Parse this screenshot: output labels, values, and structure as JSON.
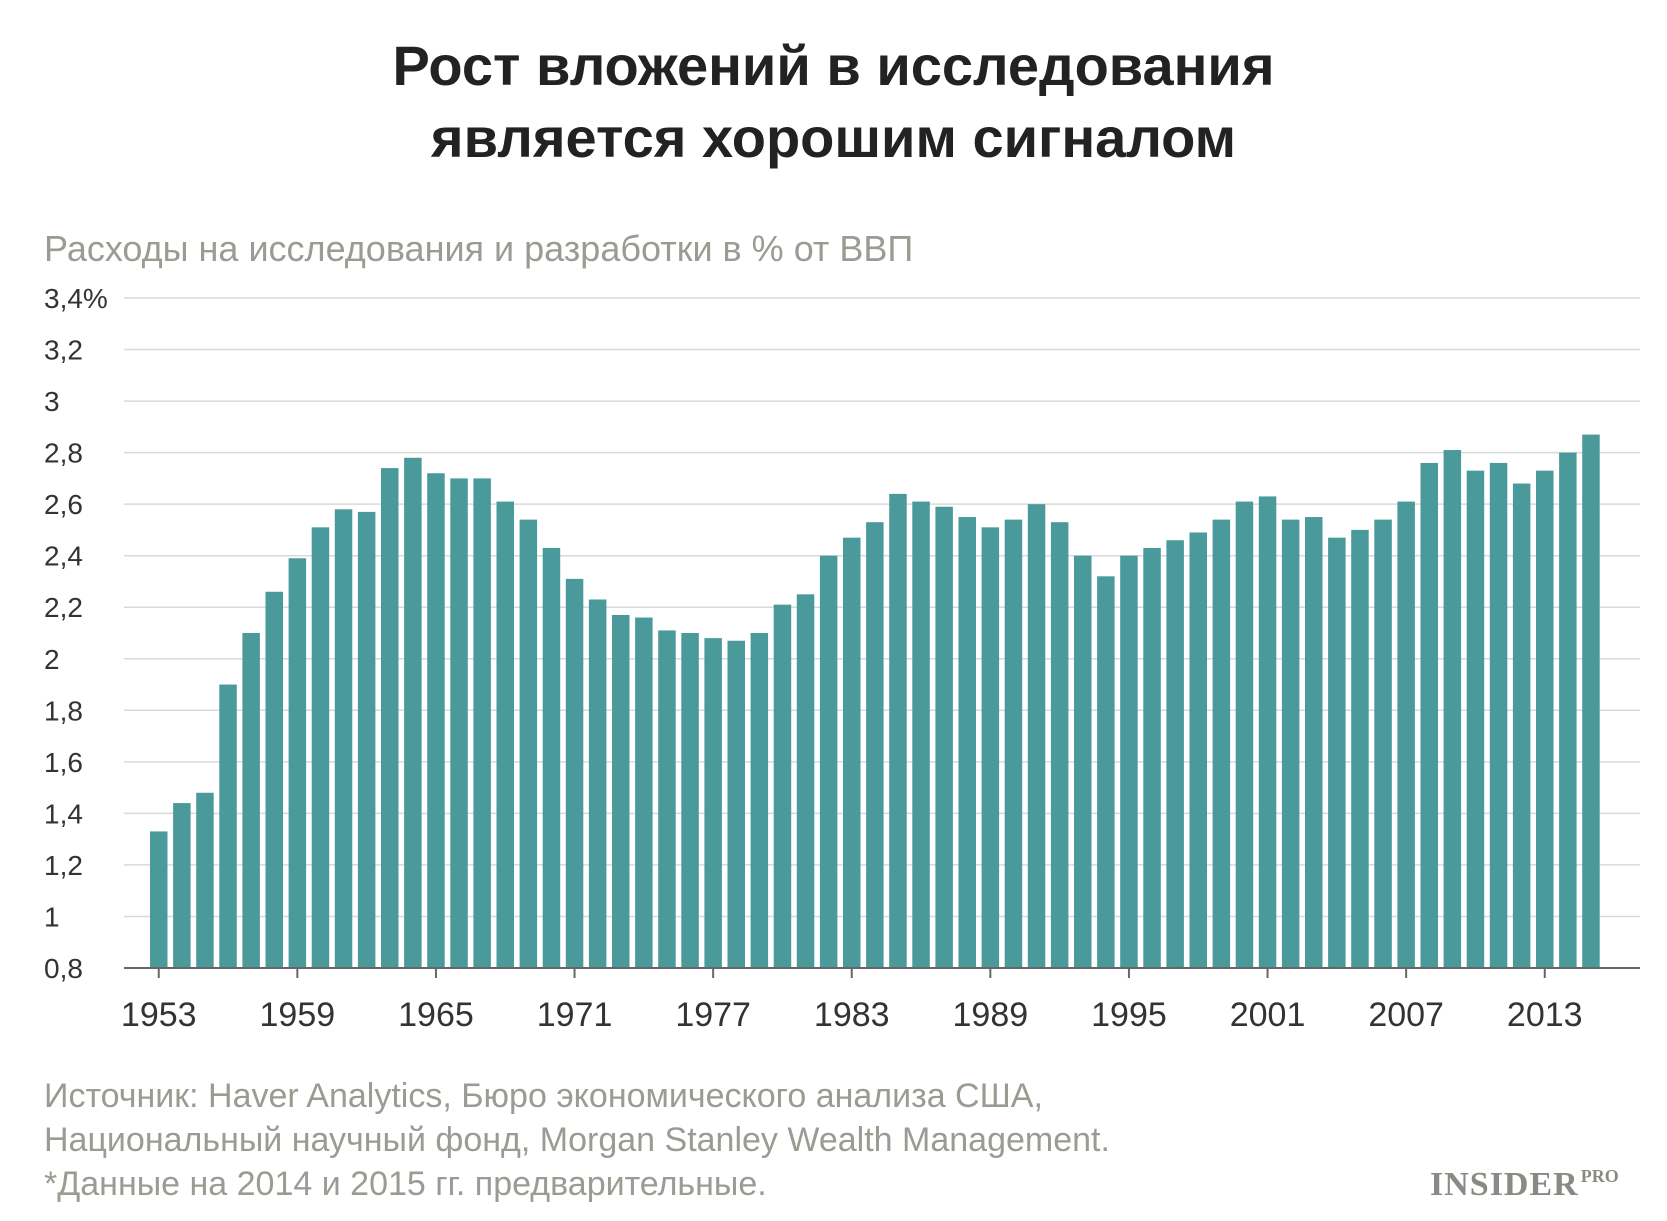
{
  "title_lines": [
    "Рост вложений в исследования",
    "является хорошим сигналом"
  ],
  "subtitle": "Расходы на исследования и разработки в % от ВВП",
  "source_lines": [
    "Источник: Haver Analytics, Бюро экономического анализа США,",
    "Национальный научный фонд, Morgan Stanley Wealth Management.",
    "*Данные на 2014 и 2015 гг. предварительные."
  ],
  "logo": {
    "main": "INSIDER",
    "sup": "PRO"
  },
  "colors": {
    "bar": "#4a9a9c",
    "grid": "#d9d9d9",
    "axis": "#666666"
  },
  "chart_data": {
    "type": "bar",
    "ylabel": "Расходы на исследования и разработки в % от ВВП",
    "ylim": [
      0.8,
      3.4
    ],
    "y_ticks": [
      {
        "value": 3.4,
        "label": "3,4%"
      },
      {
        "value": 3.2,
        "label": "3,2"
      },
      {
        "value": 3.0,
        "label": "3"
      },
      {
        "value": 2.8,
        "label": "2,8"
      },
      {
        "value": 2.6,
        "label": "2,6"
      },
      {
        "value": 2.4,
        "label": "2,4"
      },
      {
        "value": 2.2,
        "label": "2,2"
      },
      {
        "value": 2.0,
        "label": "2"
      },
      {
        "value": 1.8,
        "label": "1,8"
      },
      {
        "value": 1.6,
        "label": "1,6"
      },
      {
        "value": 1.4,
        "label": "1,4"
      },
      {
        "value": 1.2,
        "label": "1,2"
      },
      {
        "value": 1.0,
        "label": "1"
      },
      {
        "value": 0.8,
        "label": "0,8"
      }
    ],
    "x_tick_labels": [
      "1953",
      "1959",
      "1965",
      "1971",
      "1977",
      "1983",
      "1989",
      "1995",
      "2001",
      "2007",
      "2013"
    ],
    "grid": true,
    "legend": "none",
    "categories": [
      1953,
      1954,
      1955,
      1956,
      1957,
      1958,
      1959,
      1960,
      1961,
      1962,
      1963,
      1964,
      1965,
      1966,
      1967,
      1968,
      1969,
      1970,
      1971,
      1972,
      1973,
      1974,
      1975,
      1976,
      1977,
      1978,
      1979,
      1980,
      1981,
      1982,
      1983,
      1984,
      1985,
      1986,
      1987,
      1988,
      1989,
      1990,
      1991,
      1992,
      1993,
      1994,
      1995,
      1996,
      1997,
      1998,
      1999,
      2000,
      2001,
      2002,
      2003,
      2004,
      2005,
      2006,
      2007,
      2008,
      2009,
      2010,
      2011,
      2012,
      2013,
      2014,
      2015
    ],
    "values": [
      1.33,
      1.44,
      1.48,
      1.9,
      2.1,
      2.26,
      2.39,
      2.51,
      2.58,
      2.57,
      2.74,
      2.78,
      2.72,
      2.7,
      2.7,
      2.61,
      2.54,
      2.43,
      2.31,
      2.23,
      2.17,
      2.16,
      2.11,
      2.1,
      2.08,
      2.07,
      2.1,
      2.21,
      2.25,
      2.4,
      2.47,
      2.53,
      2.64,
      2.61,
      2.59,
      2.55,
      2.51,
      2.54,
      2.6,
      2.53,
      2.4,
      2.32,
      2.4,
      2.43,
      2.46,
      2.49,
      2.54,
      2.61,
      2.63,
      2.54,
      2.55,
      2.47,
      2.5,
      2.54,
      2.61,
      2.76,
      2.81,
      2.73,
      2.76,
      2.68,
      2.73,
      2.8,
      2.87
    ]
  }
}
